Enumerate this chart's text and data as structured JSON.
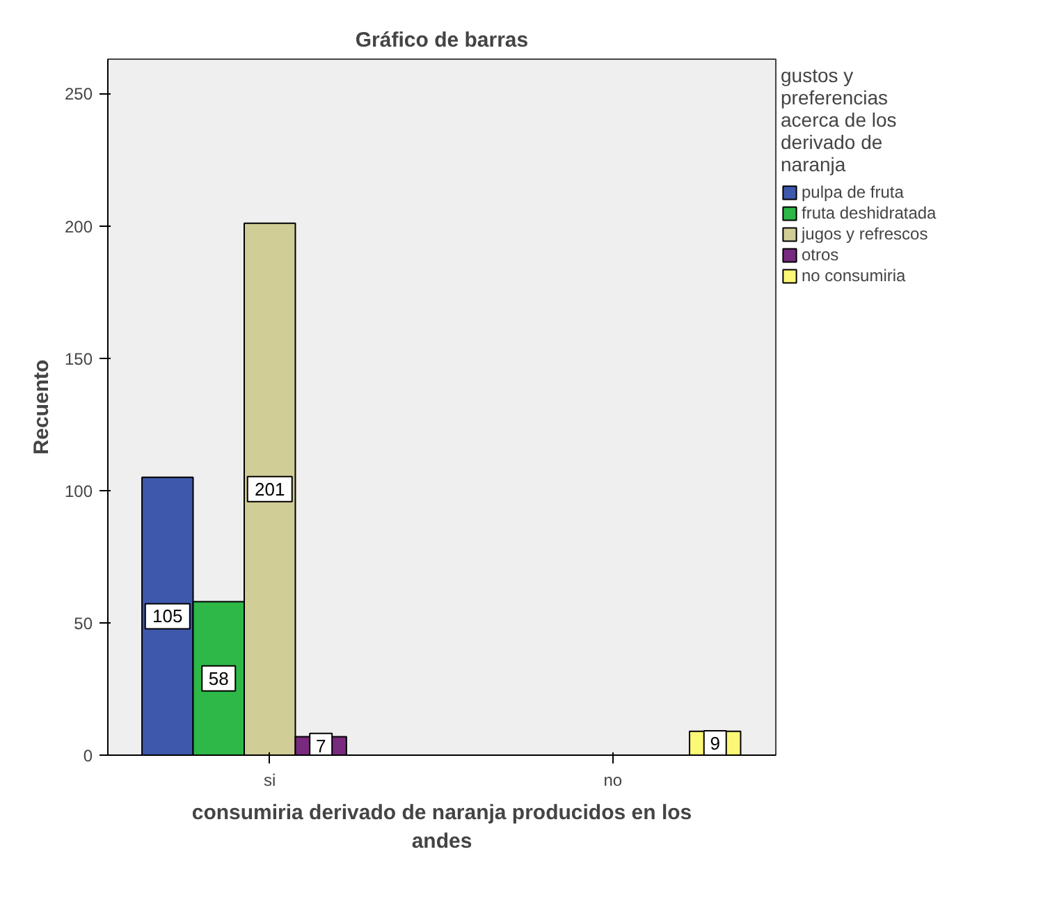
{
  "chart_data": {
    "type": "bar",
    "title": "Gráfico de barras",
    "xlabel": "consumiria derivado de naranja producidos en los andes",
    "ylabel": "Recuento",
    "legend_title": "gustos y preferencias acerca de los derivado de naranja",
    "categories": [
      "si",
      "no"
    ],
    "series": [
      {
        "name": "pulpa de fruta",
        "color": "#3e58ac",
        "values": [
          105,
          null
        ]
      },
      {
        "name": "fruta deshidratada",
        "color": "#2eb848",
        "values": [
          58,
          null
        ]
      },
      {
        "name": "jugos y refrescos",
        "color": "#d1cd96",
        "values": [
          201,
          null
        ]
      },
      {
        "name": "otros",
        "color": "#782a7e",
        "values": [
          7,
          null
        ]
      },
      {
        "name": "no consumiria",
        "color": "#fbf777",
        "values": [
          null,
          9
        ]
      }
    ],
    "ylim": [
      0,
      263
    ],
    "yticks": [
      0,
      50,
      100,
      150,
      200,
      250
    ],
    "grid": false,
    "legend": "right",
    "data_labels": true
  }
}
